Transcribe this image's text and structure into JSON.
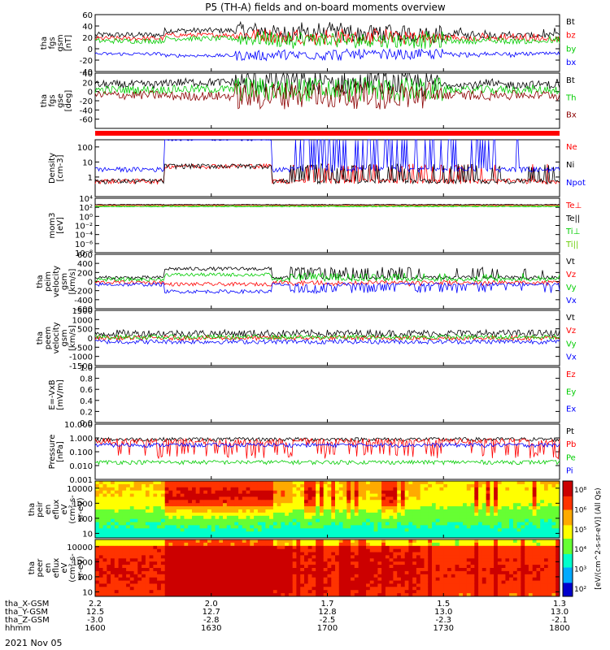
{
  "chart_data": {
    "type": "line",
    "title": "P5 (TH-A) fields and on-board moments overview",
    "date_label": "2021 Nov 05",
    "x": {
      "ticks": [
        "1600",
        "1630",
        "1700",
        "1730",
        "1800"
      ],
      "range": [
        "16:00",
        "18:00"
      ],
      "ephemeris": [
        {
          "label": "tha_X-GSM",
          "values": [
            "2.2",
            "2.0",
            "1.7",
            "1.5",
            "1.3"
          ]
        },
        {
          "label": "tha_Y-GSM",
          "values": [
            "12.5",
            "12.7",
            "12.8",
            "13.0",
            "13.0"
          ]
        },
        {
          "label": "tha_Z-GSM",
          "values": [
            "-3.0",
            "-2.8",
            "-2.5",
            "-2.3",
            "-2.1"
          ]
        },
        {
          "label": "hhmm",
          "values": [
            "1600",
            "1630",
            "1700",
            "1730",
            "1800"
          ]
        }
      ]
    },
    "panels": [
      {
        "id": "fgs_gsm",
        "ylabel": [
          "tha",
          "fgs",
          "gsm",
          "[nT]"
        ],
        "ylim": [
          -40,
          60
        ],
        "ticks": [
          "60",
          "40",
          "20",
          "0",
          "-20",
          "-40"
        ],
        "series": [
          {
            "name": "Bt",
            "color": "#000000",
            "base": 32,
            "amp": 10
          },
          {
            "name": "bz",
            "color": "#ff0000",
            "base": 24,
            "amp": 8
          },
          {
            "name": "by",
            "color": "#00cc00",
            "base": 18,
            "amp": 9
          },
          {
            "name": "bx",
            "color": "#0000ff",
            "base": -12,
            "amp": 6
          }
        ]
      },
      {
        "id": "fgs_gse",
        "ylabel": [
          "tha",
          "fgs",
          "gse",
          "[deg]"
        ],
        "ylim": [
          -80,
          40
        ],
        "ticks": [
          "40",
          "20",
          "0",
          "-20",
          "-40",
          "-60"
        ],
        "series": [
          {
            "name": "Bt",
            "color": "#000000",
            "base": 20,
            "amp": 18
          },
          {
            "name": "Th",
            "color": "#00cc00",
            "base": 5,
            "amp": 18
          },
          {
            "name": "Bx",
            "color": "#8b0000",
            "base": -10,
            "amp": 20
          }
        ]
      },
      {
        "id": "density",
        "ylabel": [
          "Density",
          "[cm-3]"
        ],
        "ylim": [
          0.05,
          300
        ],
        "log": true,
        "ticks": [
          "100",
          "10",
          "1"
        ],
        "series": [
          {
            "name": "Ne",
            "color": "#ff0000"
          },
          {
            "name": "Ni",
            "color": "#000000"
          },
          {
            "name": "Npot",
            "color": "#0000ff"
          }
        ]
      },
      {
        "id": "temperature",
        "ylabel": [
          "mom3",
          "[eV]"
        ],
        "ylim": [
          1e-08,
          10000.0
        ],
        "log": true,
        "ticks": [
          "10⁴",
          "10²",
          "10⁰",
          "10⁻²",
          "10⁻⁴",
          "10⁻⁶",
          "10⁻⁸"
        ],
        "series": [
          {
            "name": "Te⊥",
            "color": "#ff0000"
          },
          {
            "name": "Te||",
            "color": "#000000"
          },
          {
            "name": "Ti⊥",
            "color": "#00cc00"
          },
          {
            "name": "Ti||",
            "color": "#66cc00"
          }
        ]
      },
      {
        "id": "peim_velocity",
        "ylabel": [
          "tha",
          "peim",
          "velocity",
          "gsm",
          "[km/s]"
        ],
        "ylim": [
          -600,
          600
        ],
        "ticks": [
          "600",
          "400",
          "200",
          "0",
          "-200",
          "-400",
          "-600"
        ],
        "series": [
          {
            "name": "Vt",
            "color": "#000000"
          },
          {
            "name": "Vz",
            "color": "#ff0000"
          },
          {
            "name": "Vy",
            "color": "#00cc00"
          },
          {
            "name": "Vx",
            "color": "#0000ff"
          }
        ]
      },
      {
        "id": "peem_velocity",
        "ylabel": [
          "tha",
          "peem",
          "velocity",
          "gsm",
          "[km/s]"
        ],
        "ylim": [
          -1500,
          1500
        ],
        "ticks": [
          "1500",
          "1000",
          "500",
          "0",
          "-500",
          "-1000",
          "-1500"
        ],
        "series": [
          {
            "name": "Vt",
            "color": "#000000"
          },
          {
            "name": "Vz",
            "color": "#ff0000"
          },
          {
            "name": "Vy",
            "color": "#00cc00"
          },
          {
            "name": "Vx",
            "color": "#0000ff"
          }
        ]
      },
      {
        "id": "efield",
        "ylabel": [
          "E=-VxB",
          "[mV/m]"
        ],
        "ylim": [
          0,
          1
        ],
        "ticks": [
          "1.0",
          "0.8",
          "0.6",
          "0.4",
          "0.2",
          "0.0"
        ],
        "series": [
          {
            "name": "Ez",
            "color": "#ff0000"
          },
          {
            "name": "Ey",
            "color": "#00cc00"
          },
          {
            "name": "Ex",
            "color": "#0000ff"
          }
        ]
      },
      {
        "id": "pressure",
        "ylabel": [
          "Pressure",
          "[nPa]"
        ],
        "ylim": [
          0.001,
          10
        ],
        "log": true,
        "ticks": [
          "10.000",
          "1.000",
          "0.100",
          "0.010",
          "0.001"
        ],
        "series": [
          {
            "name": "Pt",
            "color": "#000000"
          },
          {
            "name": "Pb",
            "color": "#ff0000"
          },
          {
            "name": "Pe",
            "color": "#00cc00"
          },
          {
            "name": "Pi",
            "color": "#0000ff"
          }
        ]
      },
      {
        "id": "peir_eflux",
        "type": "heatmap",
        "ylabel": [
          "tha",
          "peir",
          "en",
          "eflux",
          "eV",
          "(cm²-s-",
          "sr-eV)"
        ],
        "ylim": [
          5,
          30000
        ],
        "log": true,
        "ticks": [
          "10000",
          "1000",
          "100",
          "10"
        ]
      },
      {
        "id": "peer_eflux",
        "type": "heatmap",
        "ylabel": [
          "tha",
          "peer",
          "en",
          "eflux",
          "eV",
          "(cm²-s-",
          "sr-eV)"
        ],
        "ylim": [
          5,
          30000
        ],
        "log": true,
        "ticks": [
          "10000",
          "1000",
          "100",
          "10"
        ]
      }
    ],
    "colorbar": {
      "label": "[eV/(cm^2-s-sr-eV)] (All Qs)",
      "ticks": [
        "10⁸",
        "10⁶",
        "10⁵",
        "10⁴",
        "10³",
        "10²"
      ],
      "colors": [
        "#0000cc",
        "#00aaff",
        "#00ffcc",
        "#66ff33",
        "#ffff00",
        "#ffaa00",
        "#ff3300",
        "#cc0000"
      ]
    }
  }
}
